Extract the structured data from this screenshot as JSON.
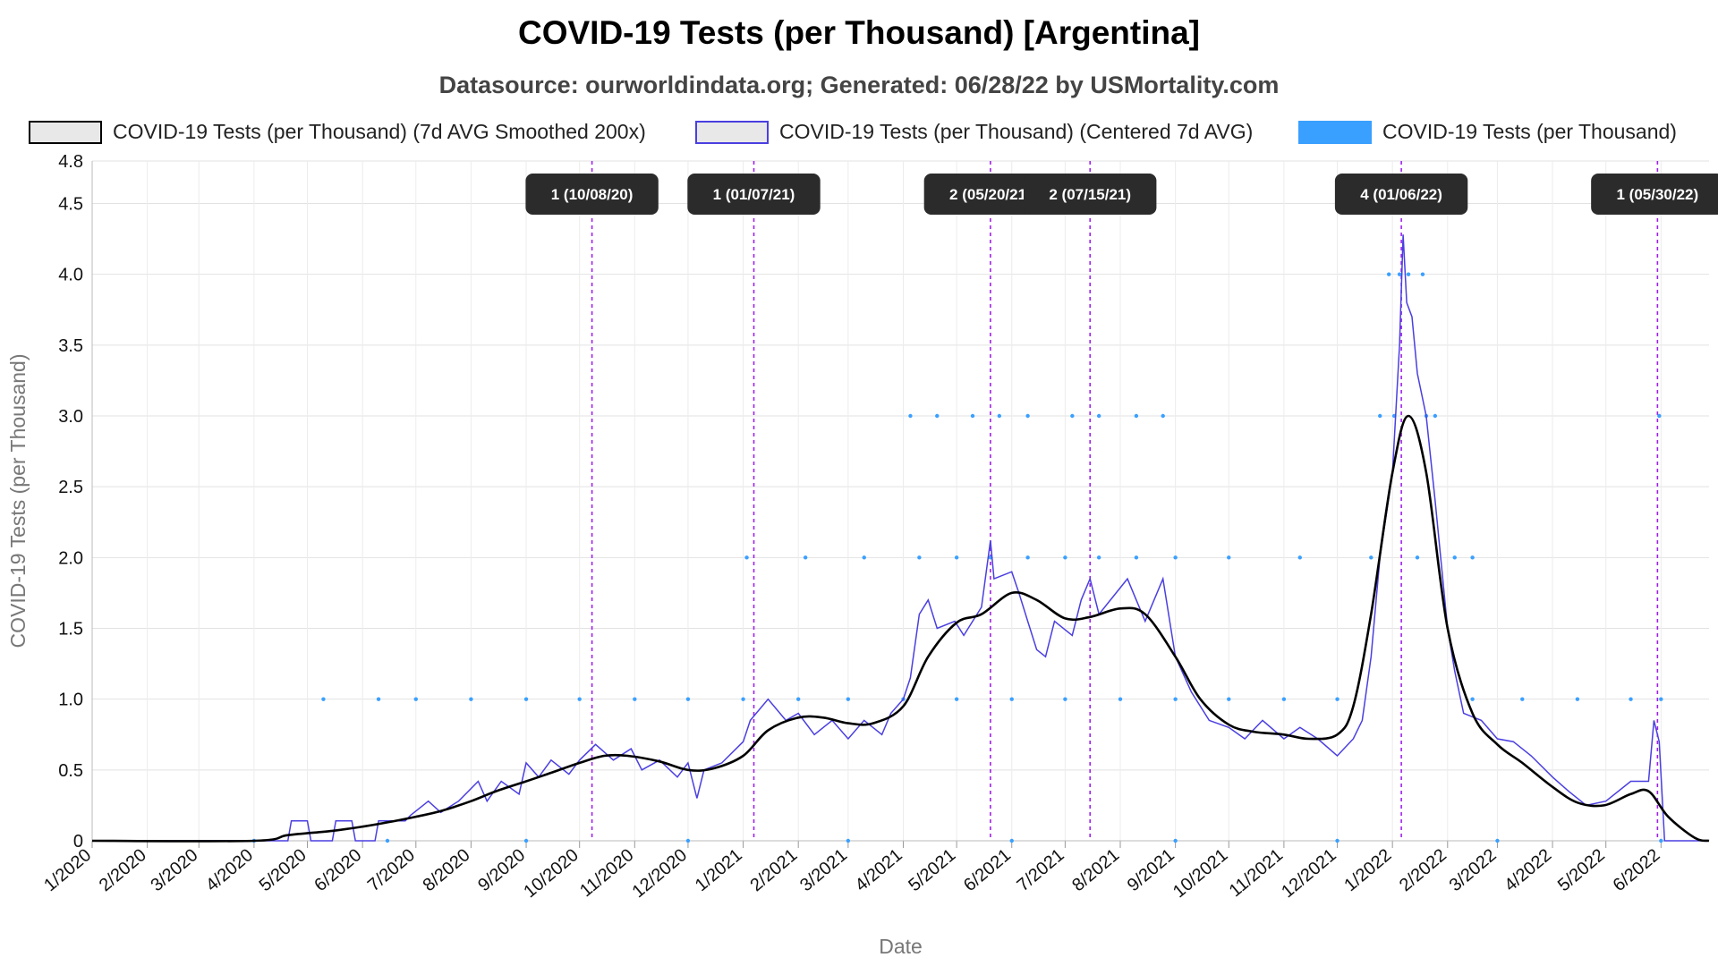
{
  "chart_data": {
    "type": "line",
    "title": "COVID-19 Tests (per Thousand) [Argentina]",
    "subtitle": "Datasource: ourworldindata.org; Generated: 06/28/22 by USMortality.com",
    "xlabel": "Date",
    "ylabel": "COVID-19 Tests (per Thousand)",
    "ylim": [
      0,
      4.8
    ],
    "yticks": [
      "0",
      "0.5",
      "1.0",
      "1.5",
      "2.0",
      "2.5",
      "3.0",
      "3.5",
      "4.0",
      "4.5",
      "4.8"
    ],
    "xlim": [
      "2020-01-01",
      "2022-06-28"
    ],
    "xticks": [
      "1/2020",
      "2/2020",
      "3/2020",
      "4/2020",
      "5/2020",
      "6/2020",
      "7/2020",
      "8/2020",
      "9/2020",
      "10/2020",
      "11/2020",
      "12/2020",
      "1/2021",
      "2/2021",
      "3/2021",
      "4/2021",
      "5/2021",
      "6/2021",
      "7/2021",
      "8/2021",
      "9/2021",
      "10/2021",
      "11/2021",
      "12/2021",
      "1/2022",
      "2/2022",
      "3/2022",
      "4/2022",
      "5/2022",
      "6/2022"
    ],
    "grid": true,
    "legend_position": "top",
    "series": [
      {
        "name": "COVID-19 Tests (per Thousand) (7d AVG Smoothed 200x)",
        "color": "#000000",
        "points": [
          [
            "2020-01-01",
            0
          ],
          [
            "2020-04-01",
            0
          ],
          [
            "2020-04-20",
            0.04
          ],
          [
            "2020-05-15",
            0.07
          ],
          [
            "2020-06-01",
            0.1
          ],
          [
            "2020-06-15",
            0.13
          ],
          [
            "2020-07-01",
            0.17
          ],
          [
            "2020-07-15",
            0.21
          ],
          [
            "2020-08-01",
            0.28
          ],
          [
            "2020-08-15",
            0.35
          ],
          [
            "2020-09-01",
            0.42
          ],
          [
            "2020-09-15",
            0.48
          ],
          [
            "2020-10-01",
            0.55
          ],
          [
            "2020-10-15",
            0.6
          ],
          [
            "2020-10-28",
            0.6
          ],
          [
            "2020-11-15",
            0.56
          ],
          [
            "2020-12-01",
            0.5
          ],
          [
            "2020-12-15",
            0.51
          ],
          [
            "2021-01-01",
            0.6
          ],
          [
            "2021-01-15",
            0.78
          ],
          [
            "2021-02-01",
            0.87
          ],
          [
            "2021-02-15",
            0.87
          ],
          [
            "2021-03-01",
            0.83
          ],
          [
            "2021-03-15",
            0.83
          ],
          [
            "2021-04-01",
            0.95
          ],
          [
            "2021-04-15",
            1.3
          ],
          [
            "2021-05-01",
            1.54
          ],
          [
            "2021-05-15",
            1.6
          ],
          [
            "2021-06-01",
            1.75
          ],
          [
            "2021-06-15",
            1.7
          ],
          [
            "2021-07-01",
            1.57
          ],
          [
            "2021-07-15",
            1.58
          ],
          [
            "2021-08-01",
            1.64
          ],
          [
            "2021-08-15",
            1.6
          ],
          [
            "2021-09-01",
            1.3
          ],
          [
            "2021-09-15",
            1.0
          ],
          [
            "2021-10-01",
            0.82
          ],
          [
            "2021-10-15",
            0.77
          ],
          [
            "2021-11-01",
            0.75
          ],
          [
            "2021-11-15",
            0.72
          ],
          [
            "2021-12-01",
            0.75
          ],
          [
            "2021-12-10",
            0.95
          ],
          [
            "2021-12-20",
            1.6
          ],
          [
            "2022-01-01",
            2.6
          ],
          [
            "2022-01-10",
            3.0
          ],
          [
            "2022-01-20",
            2.6
          ],
          [
            "2022-02-01",
            1.5
          ],
          [
            "2022-02-15",
            0.9
          ],
          [
            "2022-03-01",
            0.68
          ],
          [
            "2022-03-15",
            0.55
          ],
          [
            "2022-04-01",
            0.38
          ],
          [
            "2022-04-15",
            0.27
          ],
          [
            "2022-04-30",
            0.25
          ],
          [
            "2022-05-15",
            0.33
          ],
          [
            "2022-05-25",
            0.35
          ],
          [
            "2022-06-05",
            0.17
          ],
          [
            "2022-06-20",
            0.02
          ],
          [
            "2022-06-28",
            0
          ]
        ]
      },
      {
        "name": "COVID-19 Tests (per Thousand) (Centered 7d AVG)",
        "color": "#4a3fe0",
        "points": [
          [
            "2020-01-01",
            0
          ],
          [
            "2020-04-20",
            0
          ],
          [
            "2020-04-22",
            0.14
          ],
          [
            "2020-05-01",
            0.14
          ],
          [
            "2020-05-03",
            0
          ],
          [
            "2020-05-15",
            0
          ],
          [
            "2020-05-17",
            0.14
          ],
          [
            "2020-05-26",
            0.14
          ],
          [
            "2020-05-28",
            0
          ],
          [
            "2020-06-08",
            0
          ],
          [
            "2020-06-10",
            0.14
          ],
          [
            "2020-06-25",
            0.14
          ],
          [
            "2020-06-28",
            0.18
          ],
          [
            "2020-07-08",
            0.28
          ],
          [
            "2020-07-15",
            0.2
          ],
          [
            "2020-07-25",
            0.28
          ],
          [
            "2020-08-05",
            0.42
          ],
          [
            "2020-08-10",
            0.28
          ],
          [
            "2020-08-18",
            0.42
          ],
          [
            "2020-08-28",
            0.33
          ],
          [
            "2020-09-01",
            0.55
          ],
          [
            "2020-09-08",
            0.45
          ],
          [
            "2020-09-15",
            0.57
          ],
          [
            "2020-09-25",
            0.47
          ],
          [
            "2020-10-01",
            0.57
          ],
          [
            "2020-10-10",
            0.68
          ],
          [
            "2020-10-20",
            0.57
          ],
          [
            "2020-10-30",
            0.65
          ],
          [
            "2020-11-05",
            0.5
          ],
          [
            "2020-11-15",
            0.57
          ],
          [
            "2020-11-25",
            0.45
          ],
          [
            "2020-12-01",
            0.55
          ],
          [
            "2020-12-06",
            0.3
          ],
          [
            "2020-12-10",
            0.5
          ],
          [
            "2020-12-20",
            0.55
          ],
          [
            "2021-01-01",
            0.7
          ],
          [
            "2021-01-05",
            0.85
          ],
          [
            "2021-01-15",
            1.0
          ],
          [
            "2021-01-25",
            0.85
          ],
          [
            "2021-02-01",
            0.9
          ],
          [
            "2021-02-10",
            0.75
          ],
          [
            "2021-02-20",
            0.85
          ],
          [
            "2021-03-01",
            0.72
          ],
          [
            "2021-03-10",
            0.85
          ],
          [
            "2021-03-20",
            0.75
          ],
          [
            "2021-03-25",
            0.9
          ],
          [
            "2021-04-01",
            1.0
          ],
          [
            "2021-04-05",
            1.15
          ],
          [
            "2021-04-10",
            1.6
          ],
          [
            "2021-04-15",
            1.7
          ],
          [
            "2021-04-20",
            1.5
          ],
          [
            "2021-04-30",
            1.55
          ],
          [
            "2021-05-05",
            1.45
          ],
          [
            "2021-05-15",
            1.65
          ],
          [
            "2021-05-20",
            2.12
          ],
          [
            "2021-05-22",
            1.85
          ],
          [
            "2021-06-01",
            1.9
          ],
          [
            "2021-06-05",
            1.75
          ],
          [
            "2021-06-10",
            1.55
          ],
          [
            "2021-06-15",
            1.35
          ],
          [
            "2021-06-20",
            1.3
          ],
          [
            "2021-06-25",
            1.55
          ],
          [
            "2021-07-05",
            1.45
          ],
          [
            "2021-07-10",
            1.7
          ],
          [
            "2021-07-15",
            1.85
          ],
          [
            "2021-07-20",
            1.6
          ],
          [
            "2021-08-05",
            1.85
          ],
          [
            "2021-08-15",
            1.55
          ],
          [
            "2021-08-25",
            1.85
          ],
          [
            "2021-09-01",
            1.3
          ],
          [
            "2021-09-10",
            1.05
          ],
          [
            "2021-09-20",
            0.85
          ],
          [
            "2021-10-01",
            0.8
          ],
          [
            "2021-10-10",
            0.72
          ],
          [
            "2021-10-20",
            0.85
          ],
          [
            "2021-11-01",
            0.72
          ],
          [
            "2021-11-10",
            0.8
          ],
          [
            "2021-11-20",
            0.72
          ],
          [
            "2021-12-01",
            0.6
          ],
          [
            "2021-12-10",
            0.72
          ],
          [
            "2021-12-15",
            0.85
          ],
          [
            "2021-12-20",
            1.3
          ],
          [
            "2021-12-25",
            2.0
          ],
          [
            "2022-01-01",
            2.6
          ],
          [
            "2022-01-05",
            3.5
          ],
          [
            "2022-01-07",
            4.28
          ],
          [
            "2022-01-09",
            3.8
          ],
          [
            "2022-01-12",
            3.7
          ],
          [
            "2022-01-15",
            3.3
          ],
          [
            "2022-01-20",
            3.0
          ],
          [
            "2022-01-25",
            2.4
          ],
          [
            "2022-02-01",
            1.5
          ],
          [
            "2022-02-05",
            1.2
          ],
          [
            "2022-02-10",
            0.9
          ],
          [
            "2022-02-20",
            0.85
          ],
          [
            "2022-03-01",
            0.72
          ],
          [
            "2022-03-10",
            0.7
          ],
          [
            "2022-03-20",
            0.6
          ],
          [
            "2022-04-01",
            0.45
          ],
          [
            "2022-04-10",
            0.35
          ],
          [
            "2022-04-20",
            0.25
          ],
          [
            "2022-05-01",
            0.28
          ],
          [
            "2022-05-15",
            0.42
          ],
          [
            "2022-05-25",
            0.42
          ],
          [
            "2022-05-28",
            0.85
          ],
          [
            "2022-05-31",
            0.7
          ],
          [
            "2022-06-03",
            0.0
          ],
          [
            "2022-06-28",
            0
          ]
        ]
      },
      {
        "name": "COVID-19 Tests (per Thousand)",
        "color": "#3aa0ff",
        "points": [
          [
            "2020-04-01",
            0
          ],
          [
            "2020-06-15",
            0
          ],
          [
            "2020-09-01",
            0
          ],
          [
            "2020-12-01",
            0
          ],
          [
            "2021-03-01",
            0
          ],
          [
            "2021-06-01",
            0
          ],
          [
            "2021-09-01",
            0
          ],
          [
            "2021-12-01",
            0
          ],
          [
            "2022-03-01",
            0
          ],
          [
            "2022-06-01",
            0
          ],
          [
            "2020-05-10",
            1
          ],
          [
            "2020-06-10",
            1
          ],
          [
            "2020-07-01",
            1
          ],
          [
            "2020-08-01",
            1
          ],
          [
            "2020-09-01",
            1
          ],
          [
            "2020-10-01",
            1
          ],
          [
            "2020-11-01",
            1
          ],
          [
            "2020-12-01",
            1
          ],
          [
            "2021-01-01",
            1
          ],
          [
            "2021-02-01",
            1
          ],
          [
            "2021-03-01",
            1
          ],
          [
            "2021-04-01",
            1
          ],
          [
            "2021-05-01",
            1
          ],
          [
            "2021-06-01",
            1
          ],
          [
            "2021-07-01",
            1
          ],
          [
            "2021-08-01",
            1
          ],
          [
            "2021-09-01",
            1
          ],
          [
            "2021-10-01",
            1
          ],
          [
            "2021-11-01",
            1
          ],
          [
            "2021-12-01",
            1
          ],
          [
            "2022-02-15",
            1
          ],
          [
            "2022-03-15",
            1
          ],
          [
            "2022-04-15",
            1
          ],
          [
            "2022-05-15",
            1
          ],
          [
            "2022-06-01",
            1
          ],
          [
            "2021-01-03",
            2
          ],
          [
            "2021-02-05",
            2
          ],
          [
            "2021-03-10",
            2
          ],
          [
            "2021-04-10",
            2
          ],
          [
            "2021-05-01",
            2
          ],
          [
            "2021-05-20",
            2
          ],
          [
            "2021-06-10",
            2
          ],
          [
            "2021-07-01",
            2
          ],
          [
            "2021-07-20",
            2
          ],
          [
            "2021-08-10",
            2
          ],
          [
            "2021-09-01",
            2
          ],
          [
            "2021-10-01",
            2
          ],
          [
            "2021-11-10",
            2
          ],
          [
            "2021-12-20",
            2
          ],
          [
            "2022-01-15",
            2
          ],
          [
            "2022-02-05",
            2
          ],
          [
            "2022-02-15",
            2
          ],
          [
            "2021-04-05",
            3
          ],
          [
            "2021-04-20",
            3
          ],
          [
            "2021-05-10",
            3
          ],
          [
            "2021-05-25",
            3
          ],
          [
            "2021-06-10",
            3
          ],
          [
            "2021-07-05",
            3
          ],
          [
            "2021-07-20",
            3
          ],
          [
            "2021-08-10",
            3
          ],
          [
            "2021-08-25",
            3
          ],
          [
            "2021-12-25",
            3
          ],
          [
            "2022-01-02",
            3
          ],
          [
            "2022-01-20",
            3
          ],
          [
            "2022-01-25",
            3
          ],
          [
            "2022-05-31",
            3
          ],
          [
            "2021-12-30",
            4
          ],
          [
            "2022-01-05",
            4
          ],
          [
            "2022-01-10",
            4
          ],
          [
            "2022-01-18",
            4
          ]
        ]
      }
    ],
    "annotations": [
      {
        "date": "2020-10-08",
        "label": "1 (10/08/20)"
      },
      {
        "date": "2021-01-07",
        "label": "1 (01/07/21)"
      },
      {
        "date": "2021-05-20",
        "label": "2 (05/20/21)"
      },
      {
        "date": "2021-07-15",
        "label": "2 (07/15/21)"
      },
      {
        "date": "2022-01-06",
        "label": "4 (01/06/22)"
      },
      {
        "date": "2022-05-30",
        "label": "1 (05/30/22)"
      }
    ]
  }
}
